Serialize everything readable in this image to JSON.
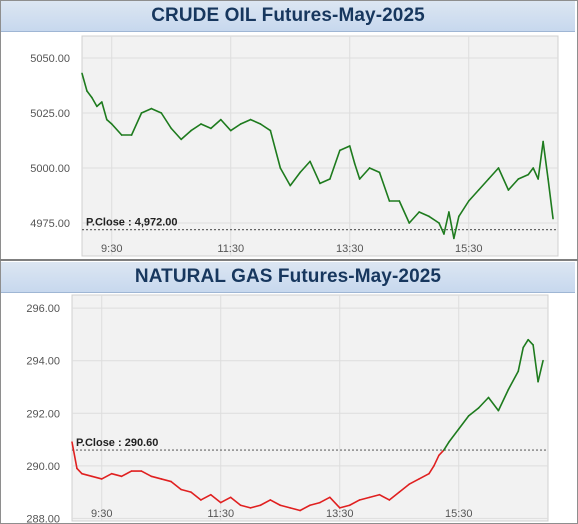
{
  "chart_data": [
    {
      "type": "line",
      "title": "CRUDE OIL Futures-May-2025",
      "ylim": [
        4960,
        5060
      ],
      "y_ticks": [
        "5050.00",
        "5025.00",
        "5000.00",
        "4975.00"
      ],
      "y_tick_values": [
        5050,
        5025,
        5000,
        4975
      ],
      "x_ticks": [
        "9:30",
        "11:30",
        "13:30",
        "15:30"
      ],
      "x_tick_minutes": [
        570,
        690,
        810,
        930
      ],
      "x_range_minutes": [
        540,
        1020
      ],
      "grid": true,
      "prev_close": 4972.0,
      "prev_close_label": "P.Close : 4,972.00",
      "colors": {
        "above": "#1e7b1e",
        "below": "#e02020",
        "grid": "#dddddd",
        "plot_bg": "#f2f2f2",
        "ref_line": "#666666"
      },
      "series": [
        {
          "x": [
            540,
            545,
            550,
            555,
            560,
            565,
            570,
            580,
            590,
            600,
            610,
            620,
            630,
            640,
            650,
            660,
            670,
            680,
            690,
            700,
            710,
            720,
            730,
            740,
            750,
            760,
            770,
            780,
            790,
            800,
            810,
            815,
            820,
            830,
            840,
            850,
            860,
            870,
            880,
            890,
            900,
            905,
            910,
            915,
            920,
            930,
            940,
            950,
            960,
            970,
            980,
            990,
            995,
            1000,
            1005,
            1010,
            1015
          ],
          "values": [
            5043,
            5035,
            5032,
            5028,
            5030,
            5022,
            5020,
            5015,
            5015,
            5025,
            5027,
            5025,
            5018,
            5013,
            5017,
            5020,
            5018,
            5022,
            5017,
            5020,
            5022,
            5020,
            5017,
            5000,
            4992,
            4998,
            5003,
            4993,
            4995,
            5008,
            5010,
            5002,
            4995,
            5000,
            4998,
            4985,
            4985,
            4975,
            4980,
            4978,
            4975,
            4970,
            4980,
            4968,
            4978,
            4985,
            4990,
            4995,
            5000,
            4990,
            4995,
            4997,
            5000,
            4995,
            5012,
            4995,
            4977
          ]
        }
      ]
    },
    {
      "type": "line",
      "title": "NATURAL GAS Futures-May-2025",
      "ylim": [
        287.9,
        296.5
      ],
      "y_ticks": [
        "296.00",
        "294.00",
        "292.00",
        "290.00",
        "288.00"
      ],
      "y_tick_values": [
        296,
        294,
        292,
        290,
        288
      ],
      "x_ticks": [
        "9:30",
        "11:30",
        "13:30",
        "15:30"
      ],
      "x_tick_minutes": [
        570,
        690,
        810,
        930
      ],
      "x_range_minutes": [
        540,
        1020
      ],
      "grid": true,
      "prev_close": 290.6,
      "prev_close_label": "P.Close : 290.60",
      "colors": {
        "above": "#1e7b1e",
        "below": "#e02020",
        "grid": "#dddddd",
        "plot_bg": "#f2f2f2",
        "ref_line": "#666666"
      },
      "series": [
        {
          "x": [
            540,
            545,
            550,
            560,
            570,
            580,
            590,
            600,
            610,
            620,
            630,
            640,
            650,
            660,
            670,
            680,
            690,
            700,
            710,
            720,
            730,
            740,
            750,
            760,
            770,
            780,
            790,
            800,
            810,
            820,
            830,
            840,
            850,
            860,
            870,
            880,
            890,
            900,
            905,
            910,
            915,
            920,
            930,
            940,
            950,
            960,
            970,
            980,
            990,
            995,
            1000,
            1005,
            1010,
            1015
          ],
          "values": [
            290.9,
            289.9,
            289.7,
            289.6,
            289.5,
            289.7,
            289.6,
            289.8,
            289.8,
            289.6,
            289.5,
            289.4,
            289.1,
            289.0,
            288.7,
            288.9,
            288.6,
            288.8,
            288.5,
            288.4,
            288.5,
            288.7,
            288.5,
            288.4,
            288.3,
            288.5,
            288.6,
            288.8,
            288.4,
            288.5,
            288.7,
            288.8,
            288.9,
            288.7,
            289.0,
            289.3,
            289.5,
            289.7,
            290.0,
            290.4,
            290.6,
            290.9,
            291.4,
            291.9,
            292.2,
            292.6,
            292.1,
            292.9,
            293.6,
            294.5,
            294.8,
            294.6,
            293.2,
            294.0
          ]
        }
      ]
    }
  ]
}
